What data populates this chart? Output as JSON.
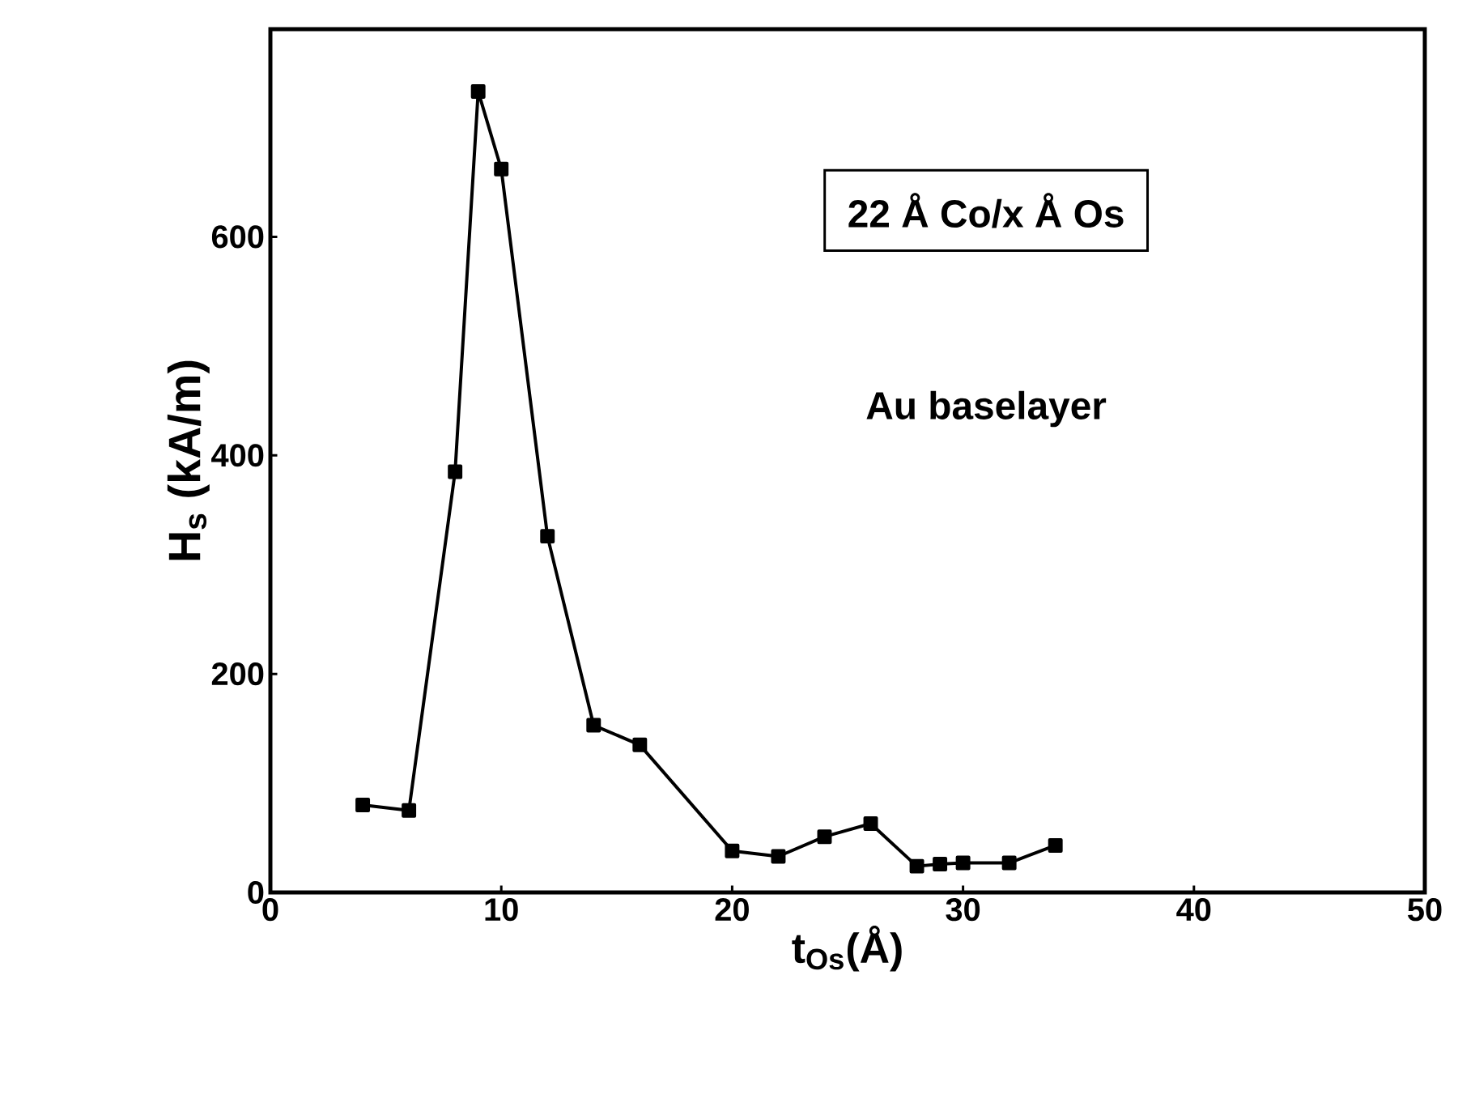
{
  "chart_data": {
    "type": "line",
    "xlabel": "t$_{Os}$(Å)",
    "ylabel": "H$_{s}$ (kA/m)",
    "annotations": [
      "22 Å  Co/x Å Os",
      "Au baselayer"
    ],
    "x": [
      4,
      6,
      8,
      9,
      10,
      12,
      14,
      16,
      20,
      22,
      24,
      26,
      28,
      29,
      30,
      32,
      34
    ],
    "series": [
      {
        "color": "#000000",
        "values": [
          80,
          75,
          385,
          733,
          662,
          326,
          153,
          135,
          38,
          33,
          51,
          63,
          24,
          26,
          27,
          27,
          43
        ]
      }
    ],
    "xlim": [
      0,
      50
    ],
    "ylim": [
      0,
      790
    ],
    "xticks": [
      0,
      10,
      20,
      30,
      40,
      50
    ],
    "yticks": [
      0,
      200,
      400,
      600
    ],
    "marker": "square",
    "line_style": "solid"
  }
}
